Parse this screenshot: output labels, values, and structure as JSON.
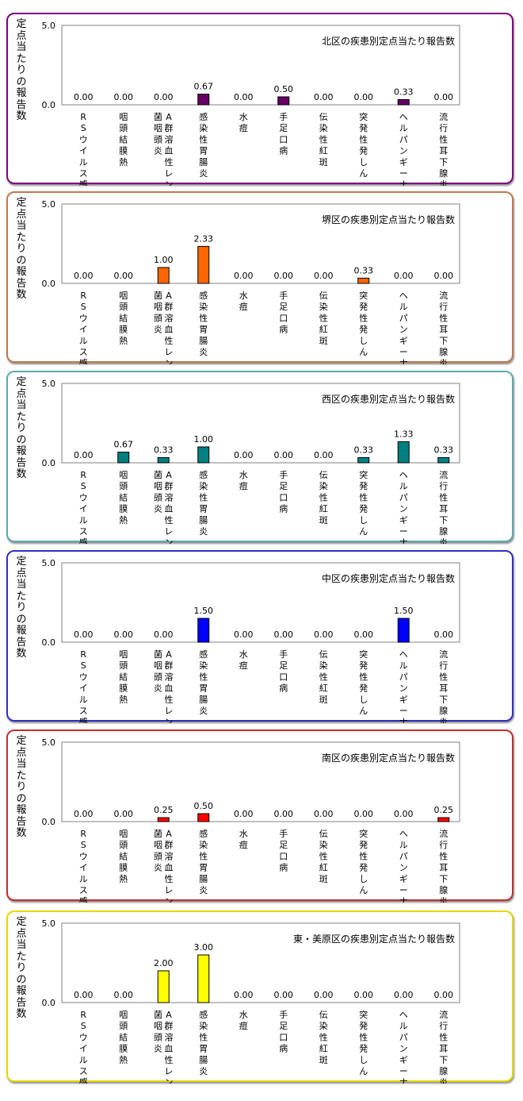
{
  "y_axis_title": "定点当たりの報告数",
  "categories": [
    "RSウイルス感染症",
    "咽頭結膜熱",
    "A群溶血性レンサ球菌咽頭炎",
    "感染性胃腸炎",
    "水痘",
    "手足口病",
    "伝染性紅斑",
    "突発性発しん",
    "ヘルパンギーナ",
    "流行性耳下腺炎"
  ],
  "chart_data": [
    {
      "type": "bar",
      "title": "北区の疾患別定点当たり報告数",
      "color": "#660066",
      "border_color": "#800080",
      "ylim": [
        0,
        5
      ],
      "yticks": [
        "0.0",
        "5.0"
      ],
      "values": [
        0,
        0,
        0,
        0.67,
        0,
        0.5,
        0,
        0,
        0.33,
        0
      ],
      "value_labels": [
        "0.00",
        "0.00",
        "0.00",
        "0.67",
        "0.00",
        "0.50",
        "0.00",
        "0.00",
        "0.33",
        "0.00"
      ]
    },
    {
      "type": "bar",
      "title": "堺区の疾患別定点当たり報告数",
      "color": "#FF6600",
      "border_color": "#C07850",
      "ylim": [
        0,
        5
      ],
      "yticks": [
        "0.0",
        "5.0"
      ],
      "values": [
        0,
        0,
        1,
        2.33,
        0,
        0,
        0,
        0.33,
        0,
        0
      ],
      "value_labels": [
        "0.00",
        "0.00",
        "1.00",
        "2.33",
        "0.00",
        "0.00",
        "0.00",
        "0.33",
        "0.00",
        "0.00"
      ]
    },
    {
      "type": "bar",
      "title": "西区の疾患別定点当たり報告数",
      "color": "#008080",
      "border_color": "#60A8B0",
      "ylim": [
        0,
        5
      ],
      "yticks": [
        "0.0",
        "5.0"
      ],
      "values": [
        0,
        0.67,
        0.33,
        1,
        0,
        0,
        0,
        0.33,
        1.33,
        0.33
      ],
      "value_labels": [
        "0.00",
        "0.67",
        "0.33",
        "1.00",
        "0.00",
        "0.00",
        "0.00",
        "0.33",
        "1.33",
        "0.33"
      ]
    },
    {
      "type": "bar",
      "title": "中区の疾患別定点当たり報告数",
      "color": "#0000FF",
      "border_color": "#3030C0",
      "ylim": [
        0,
        5
      ],
      "yticks": [
        "0.0",
        "5.0"
      ],
      "values": [
        0,
        0,
        0,
        1.5,
        0,
        0,
        0,
        0,
        1.5,
        0
      ],
      "value_labels": [
        "0.00",
        "0.00",
        "0.00",
        "1.50",
        "0.00",
        "0.00",
        "0.00",
        "0.00",
        "1.50",
        "0.00"
      ]
    },
    {
      "type": "bar",
      "title": "南区の疾患別定点当たり報告数",
      "color": "#FF0000",
      "border_color": "#C03030",
      "ylim": [
        0,
        5
      ],
      "yticks": [
        "0.0",
        "5.0"
      ],
      "values": [
        0,
        0,
        0.25,
        0.5,
        0,
        0,
        0,
        0,
        0,
        0.25
      ],
      "value_labels": [
        "0.00",
        "0.00",
        "0.25",
        "0.50",
        "0.00",
        "0.00",
        "0.00",
        "0.00",
        "0.00",
        "0.25"
      ]
    },
    {
      "type": "bar",
      "title": "東・美原区の疾患別定点当たり報告数",
      "color": "#FFFF00",
      "border_color": "#E6D800",
      "ylim": [
        0,
        5
      ],
      "yticks": [
        "0.0",
        "5.0"
      ],
      "values": [
        0,
        0,
        2,
        3,
        0,
        0,
        0,
        0,
        0,
        0
      ],
      "value_labels": [
        "0.00",
        "0.00",
        "2.00",
        "3.00",
        "0.00",
        "0.00",
        "0.00",
        "0.00",
        "0.00",
        "0.00"
      ]
    }
  ]
}
